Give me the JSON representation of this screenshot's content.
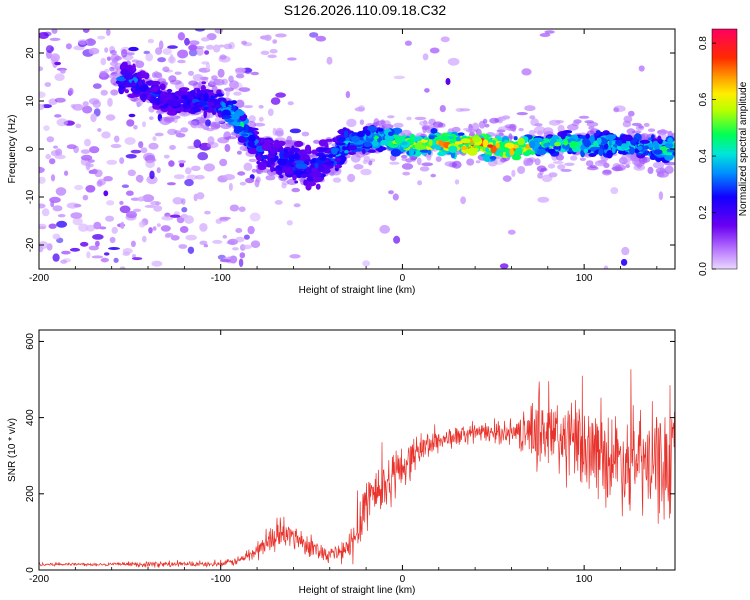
{
  "title": "S126.2026.110.09.18.C32",
  "chart_data": [
    {
      "type": "heatmap",
      "xlabel": "Height of straight line (km)",
      "ylabel": "Frequency (Hz)",
      "xlim": [
        -200,
        150
      ],
      "ylim": [
        -25,
        25
      ],
      "xticks": [
        -200,
        -100,
        0,
        100
      ],
      "yticks": [
        -20,
        -10,
        0,
        10,
        20
      ],
      "colorbar": {
        "label": "Normalized spectral amplitude",
        "range": [
          0.0,
          0.85
        ],
        "ticks": [
          "0.0",
          "0.2",
          "0.4",
          "0.6",
          "0.8"
        ],
        "tick_values": [
          0.0,
          0.2,
          0.4,
          0.6,
          0.8
        ]
      },
      "ridge": {
        "x": [
          -150,
          -140,
          -130,
          -120,
          -110,
          -100,
          -95,
          -90,
          -85,
          -80,
          -70,
          -60,
          -50,
          -40,
          -30,
          -20,
          -10,
          0,
          20,
          40,
          60,
          80,
          100,
          120,
          140,
          150
        ],
        "freq": [
          15,
          12,
          10,
          10,
          10,
          9,
          8,
          6,
          3,
          0,
          -2,
          -3,
          -4,
          -2,
          1,
          2,
          2,
          1,
          1,
          1,
          0,
          1,
          1,
          1,
          0,
          0
        ],
        "amplitude": [
          0.35,
          0.3,
          0.3,
          0.3,
          0.32,
          0.35,
          0.45,
          0.5,
          0.45,
          0.35,
          0.3,
          0.35,
          0.3,
          0.35,
          0.45,
          0.5,
          0.55,
          0.65,
          0.75,
          0.85,
          0.8,
          0.55,
          0.55,
          0.5,
          0.5,
          0.55
        ]
      }
    },
    {
      "type": "line",
      "xlabel": "Height of straight line (km)",
      "ylabel": "SNR (10 * v/v)",
      "xlim": [
        -200,
        150
      ],
      "ylim": [
        0,
        630
      ],
      "xticks": [
        -200,
        -100,
        0,
        100
      ],
      "yticks": [
        0,
        200,
        400,
        600
      ],
      "series": [
        {
          "name": "SNR",
          "color": "#e8322b",
          "x": [
            -200,
            -150,
            -140,
            -120,
            -100,
            -90,
            -80,
            -70,
            -60,
            -50,
            -40,
            -30,
            -25,
            -20,
            -10,
            0,
            10,
            20,
            30,
            40,
            50,
            60,
            70,
            75,
            80,
            90,
            100,
            110,
            120,
            130,
            140,
            150
          ],
          "y": [
            15,
            15,
            15,
            15,
            15,
            25,
            50,
            90,
            90,
            60,
            40,
            50,
            100,
            190,
            220,
            270,
            320,
            340,
            350,
            360,
            360,
            360,
            360,
            380,
            350,
            340,
            320,
            300,
            290,
            280,
            270,
            280
          ],
          "spread": [
            4,
            4,
            8,
            6,
            6,
            12,
            25,
            35,
            35,
            25,
            20,
            40,
            70,
            80,
            70,
            55,
            40,
            30,
            25,
            25,
            25,
            30,
            60,
            110,
            120,
            110,
            110,
            110,
            120,
            130,
            140,
            140
          ]
        }
      ]
    }
  ]
}
